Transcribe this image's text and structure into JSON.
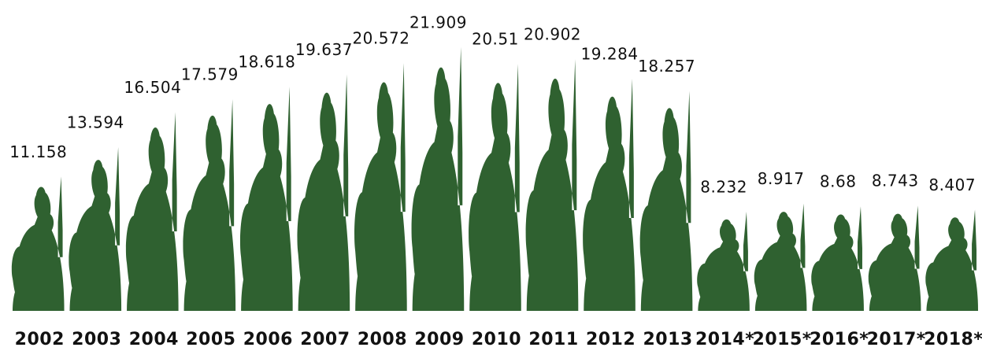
{
  "chart_data": {
    "type": "pictogram",
    "color": "#2f6130",
    "categories": [
      "2002",
      "2003",
      "2004",
      "2005",
      "2006",
      "2007",
      "2008",
      "2009",
      "2010",
      "2011",
      "2012",
      "2013",
      "2014*",
      "2015*",
      "2016*",
      "2017*",
      "2018*"
    ],
    "values": [
      11.158,
      13.594,
      16.504,
      17.579,
      18.618,
      19.637,
      20.572,
      21.909,
      20.51,
      20.902,
      19.284,
      18.257,
      8.232,
      8.917,
      8.68,
      8.743,
      8.407
    ]
  }
}
